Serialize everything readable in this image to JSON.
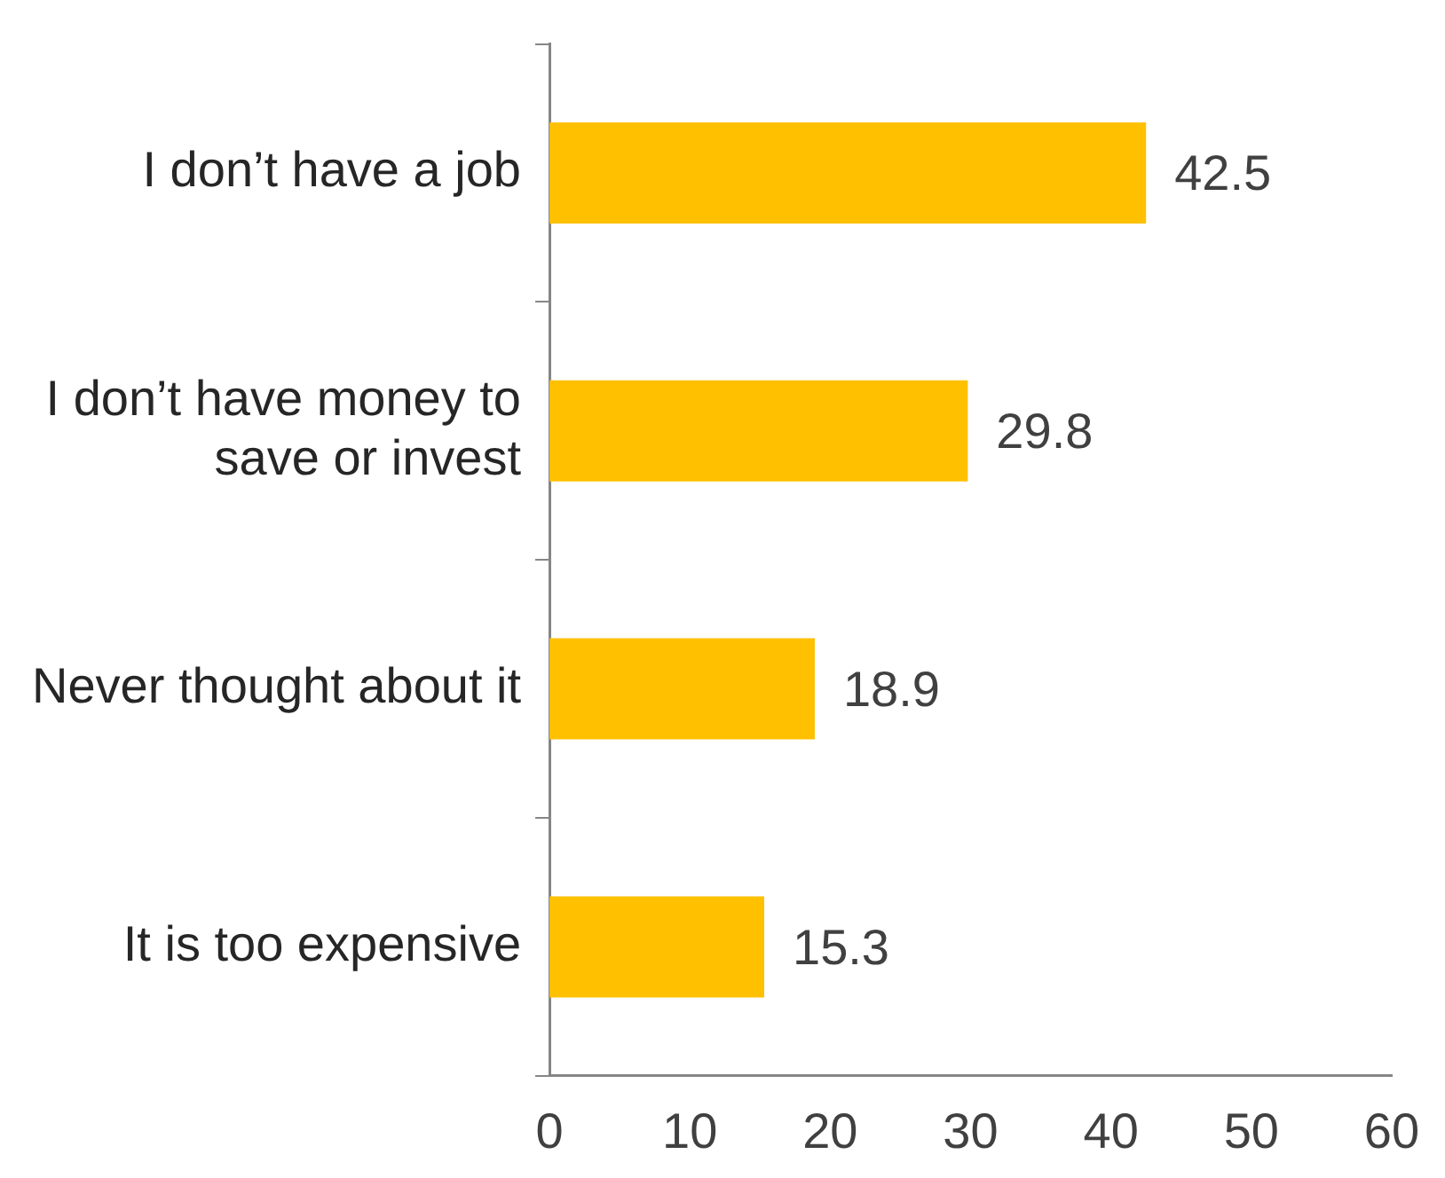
{
  "chart_data": {
    "type": "bar",
    "orientation": "horizontal",
    "categories": [
      "I don’t have a job",
      "I don’t have money to save or invest",
      "Never thought about it",
      "It is too expensive"
    ],
    "values": [
      42.5,
      29.8,
      18.9,
      15.3
    ],
    "color": "#ffc000",
    "xlim": [
      0,
      60
    ],
    "xticks": [
      0,
      10,
      20,
      30,
      40,
      50,
      60
    ],
    "grid": false,
    "legend": false,
    "data_labels": true
  }
}
